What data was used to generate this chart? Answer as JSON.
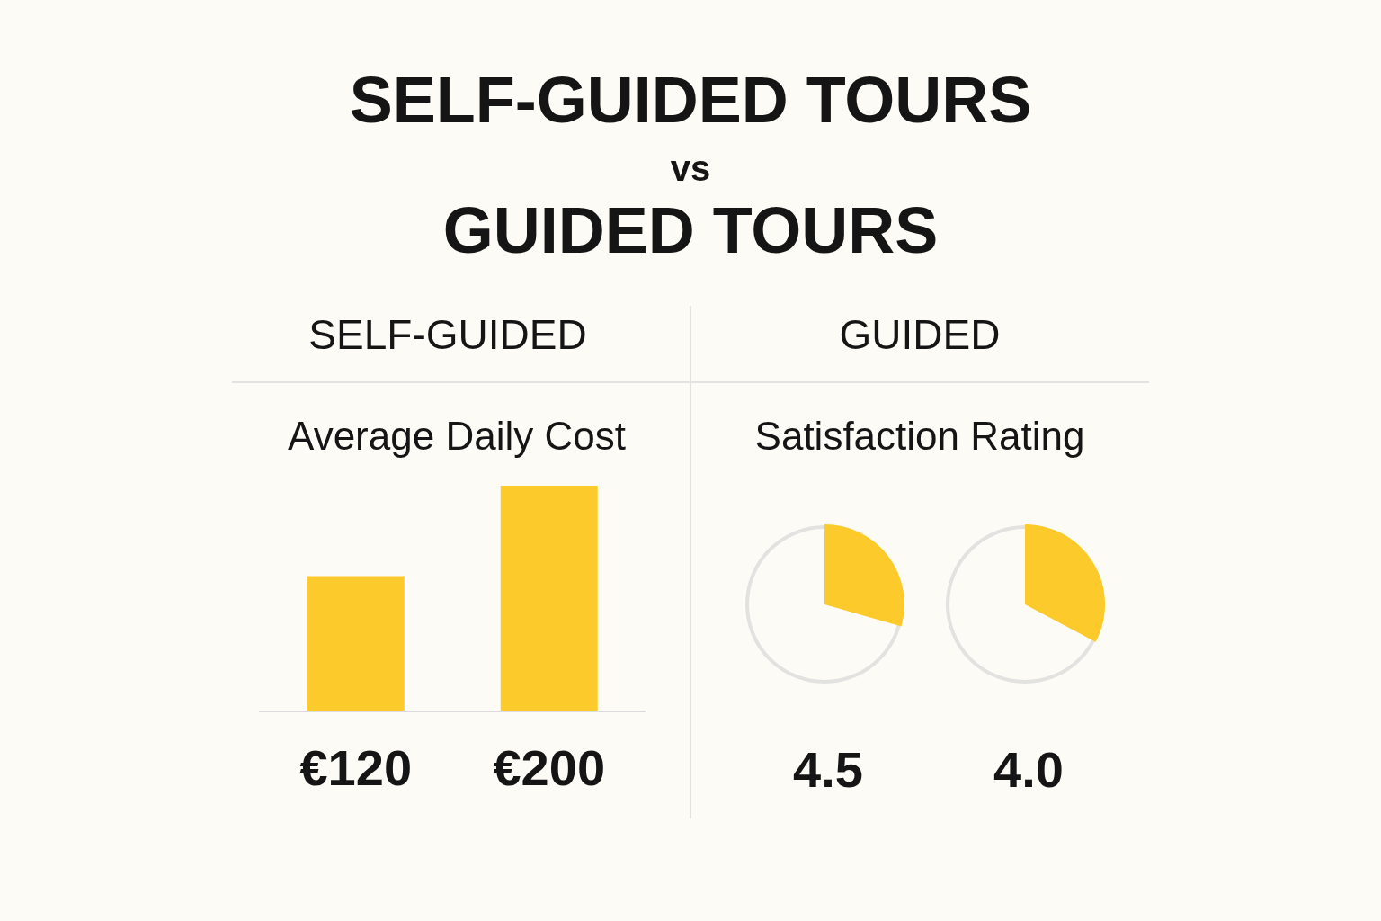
{
  "chart_data": [
    {
      "type": "other",
      "title": "SELF-GUIDED TOURS",
      "subtitle": "vs",
      "annotations": [
        "GUIDED TOURS",
        "SELF-GUIDED",
        "GUIDED"
      ]
    },
    {
      "type": "bar",
      "title": "Average Daily Cost",
      "categories": [
        null,
        null
      ],
      "values": [
        120,
        200
      ],
      "value_labels": [
        "€120",
        "€200"
      ],
      "color": "#fcca2b"
    },
    {
      "type": "other",
      "title": "Satisfaction Rating",
      "categories": [
        null,
        null
      ],
      "value_labels": [
        "4.5",
        "4.0"
      ],
      "color": "#fcca2b"
    }
  ]
}
